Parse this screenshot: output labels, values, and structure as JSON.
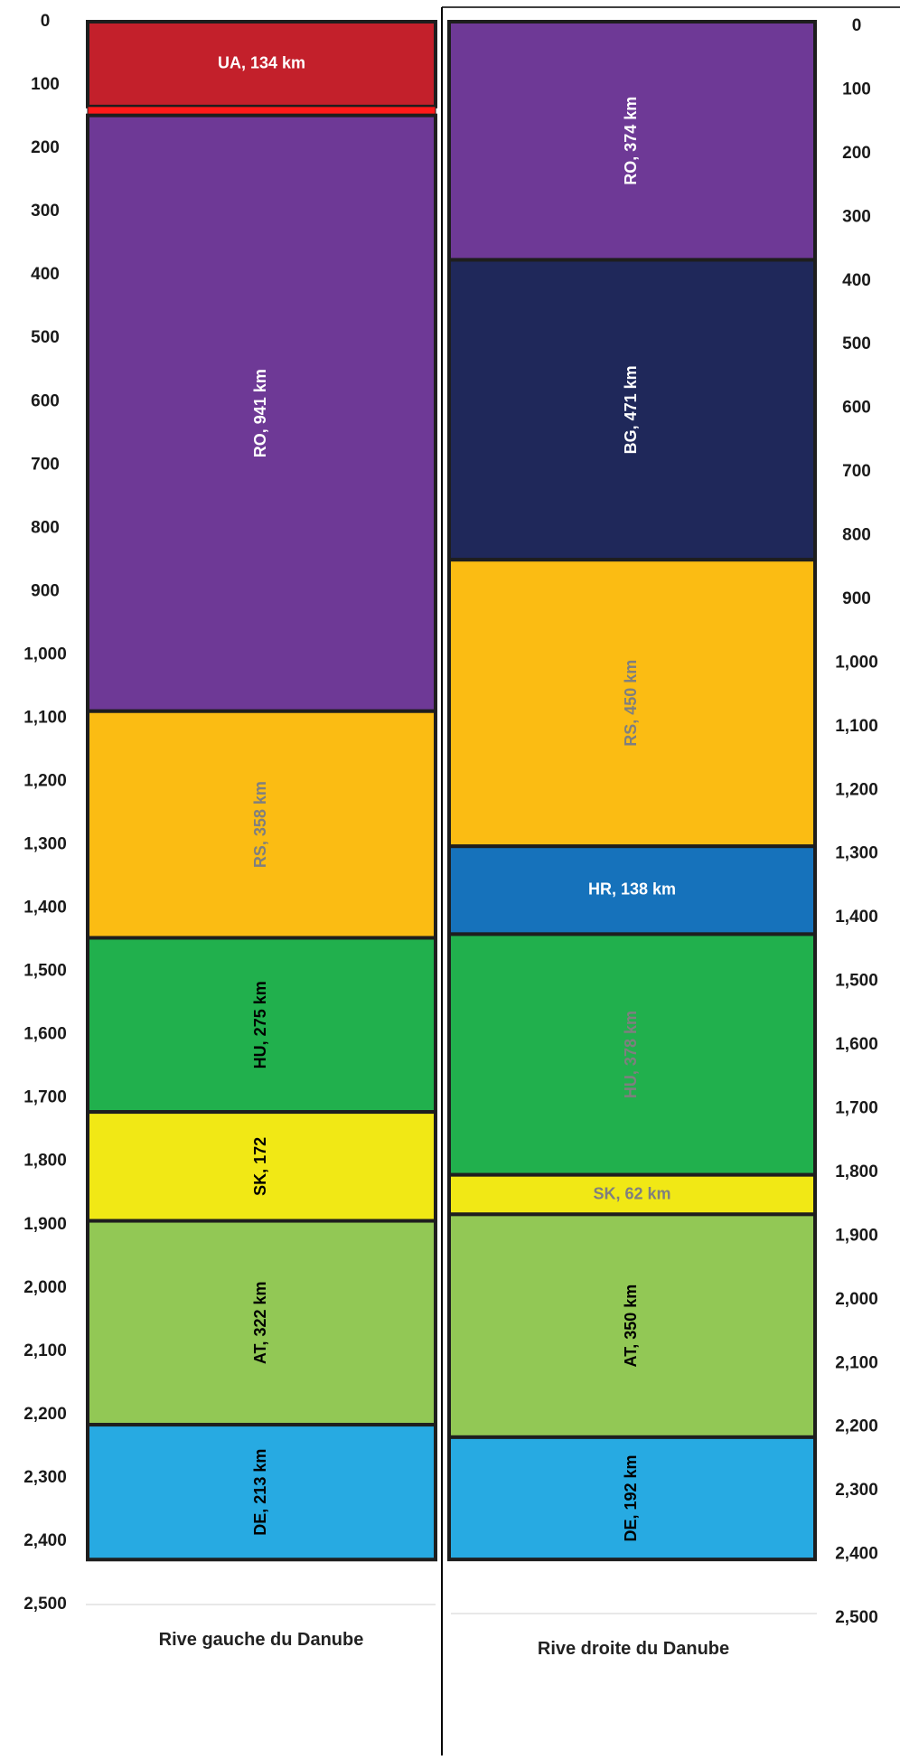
{
  "chart_data": [
    {
      "type": "bar",
      "xlabel": "Rive gauche du Danube",
      "ylim": [
        0,
        2500
      ],
      "yticks": [
        "0",
        "100",
        "200",
        "300",
        "400",
        "500",
        "600",
        "700",
        "800",
        "900",
        "1,000",
        "1,100",
        "1,200",
        "1,300",
        "1,400",
        "1,500",
        "1,600",
        "1,700",
        "1,800",
        "1,900",
        "2,000",
        "2,100",
        "2,200",
        "2,300",
        "2,400",
        "2,500"
      ],
      "tick_side": "left",
      "segments": [
        {
          "start": 0,
          "end": 134,
          "label": "UA, 134 km",
          "color": "#c3202b",
          "text_color": "#ffffff",
          "orientation": "horizontal"
        },
        {
          "start": 134,
          "end": 148,
          "label": "",
          "color": "#ff1a1a",
          "text_color": "#ffffff",
          "orientation": "horizontal"
        },
        {
          "start": 148,
          "end": 1089,
          "label": "RO, 941 km",
          "color": "#6e3996",
          "text_color": "#ffffff",
          "orientation": "vertical"
        },
        {
          "start": 1089,
          "end": 1447,
          "label": "RS, 358 km",
          "color": "#fbbc13",
          "text_color": "#7f7f7f",
          "orientation": "vertical"
        },
        {
          "start": 1447,
          "end": 1722,
          "label": "HU, 275 km",
          "color": "#21b04d",
          "text_color": "#000000",
          "orientation": "vertical"
        },
        {
          "start": 1722,
          "end": 1894,
          "label": "SK, 172",
          "color": "#f1e815",
          "text_color": "#000000",
          "orientation": "vertical"
        },
        {
          "start": 1894,
          "end": 2216,
          "label": "AT, 322 km",
          "color": "#92c855",
          "text_color": "#000000",
          "orientation": "vertical"
        },
        {
          "start": 2216,
          "end": 2429,
          "label": "DE, 213 km",
          "color": "#27aae2",
          "text_color": "#000000",
          "orientation": "vertical"
        }
      ]
    },
    {
      "type": "bar",
      "xlabel": "Rive droite du Danube",
      "ylim": [
        0,
        2500
      ],
      "yticks": [
        "0",
        "100",
        "200",
        "300",
        "400",
        "500",
        "600",
        "700",
        "800",
        "900",
        "1,000",
        "1,100",
        "1,200",
        "1,300",
        "1,400",
        "1,500",
        "1,600",
        "1,700",
        "1,800",
        "1,900",
        "2,000",
        "2,100",
        "2,200",
        "2,300",
        "2,400",
        "2,500"
      ],
      "tick_side": "right",
      "segments": [
        {
          "start": 0,
          "end": 374,
          "label": "RO, 374 km",
          "color": "#6e3996",
          "text_color": "#ffffff",
          "orientation": "vertical"
        },
        {
          "start": 374,
          "end": 845,
          "label": "BG, 471 km",
          "color": "#1f285a",
          "text_color": "#ffffff",
          "orientation": "vertical"
        },
        {
          "start": 845,
          "end": 1295,
          "label": "RS, 450 km",
          "color": "#fbbc13",
          "text_color": "#7f7f7f",
          "orientation": "vertical"
        },
        {
          "start": 1295,
          "end": 1433,
          "label": "HR, 138 km",
          "color": "#1672bb",
          "text_color": "#ffffff",
          "orientation": "horizontal"
        },
        {
          "start": 1433,
          "end": 1811,
          "label": "HU, 378 km",
          "color": "#21b04d",
          "text_color": "#7f7f7f",
          "orientation": "vertical"
        },
        {
          "start": 1811,
          "end": 1873,
          "label": "SK, 62 km",
          "color": "#f1e815",
          "text_color": "#7f7f7f",
          "orientation": "horizontal"
        },
        {
          "start": 1873,
          "end": 2223,
          "label": "AT, 350 km",
          "color": "#92c855",
          "text_color": "#000000",
          "orientation": "vertical"
        },
        {
          "start": 2223,
          "end": 2415,
          "label": "DE, 192 km",
          "color": "#27aae2",
          "text_color": "#000000",
          "orientation": "vertical"
        }
      ]
    }
  ]
}
